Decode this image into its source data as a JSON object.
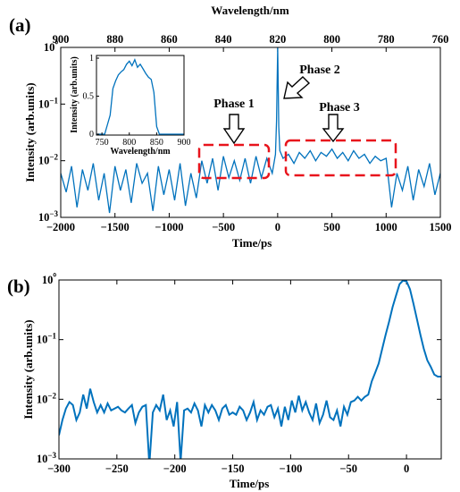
{
  "panels": {
    "a": {
      "label": "(a)",
      "top_axis_label": "Wavelength/nm",
      "bottom_axis_label": "Time/ps",
      "y_axis_label": "Intensity (arb.units)",
      "annotations": [
        "Phase 1",
        "Phase 2",
        "Phase 3"
      ]
    },
    "b": {
      "label": "(b)",
      "bottom_axis_label": "Time/ps",
      "y_axis_label": "Intensity (arb.units)"
    }
  },
  "chart_data": [
    {
      "id": "panel-a-main",
      "type": "line",
      "title": "",
      "xlabel": "Time/ps",
      "ylabel": "Intensity (arb.units)",
      "x2label": "Wavelength/nm",
      "xlim": [
        -2000,
        1500
      ],
      "x2lim": [
        900,
        760
      ],
      "ylim": [
        0.001,
        1
      ],
      "yscale": "log",
      "grid": false,
      "color": "#0072bd",
      "xticks": [
        -2000,
        -1500,
        -1000,
        -500,
        0,
        500,
        1000,
        1500
      ],
      "xticklabels": [
        "−2000",
        "−1500",
        "−1000",
        "−500",
        "0",
        "500",
        "1000",
        "1500"
      ],
      "x2ticks": [
        900,
        880,
        860,
        840,
        820,
        800,
        780,
        760
      ],
      "x2ticklabels": [
        "900",
        "880",
        "860",
        "840",
        "820",
        "800",
        "780",
        "760"
      ],
      "yticks": [
        0.001,
        0.01,
        0.1,
        1
      ],
      "yticklabels": [
        "10−3",
        "10−2",
        "10−1",
        "10⁰"
      ],
      "series": [
        {
          "x": [
            -2000,
            -1950,
            -1900,
            -1850,
            -1800,
            -1750,
            -1700,
            -1650,
            -1600,
            -1550,
            -1500,
            -1450,
            -1400,
            -1350,
            -1300,
            -1250,
            -1200,
            -1150,
            -1100,
            -1050,
            -1000,
            -950,
            -900,
            -850,
            -800,
            -750,
            -700,
            -650,
            -600,
            -550,
            -500,
            -450,
            -400,
            -350,
            -300,
            -250,
            -200,
            -150,
            -100,
            -50,
            -20,
            -10,
            0,
            10,
            20,
            50,
            100,
            150,
            200,
            250,
            300,
            350,
            400,
            450,
            500,
            550,
            600,
            650,
            700,
            750,
            800,
            850,
            900,
            950,
            1000,
            1050,
            1100,
            1150,
            1200,
            1250,
            1300,
            1350,
            1400,
            1450,
            1500
          ],
          "values": [
            0.006,
            0.0028,
            0.008,
            0.0015,
            0.007,
            0.003,
            0.009,
            0.002,
            0.006,
            0.0012,
            0.008,
            0.003,
            0.007,
            0.0018,
            0.009,
            0.004,
            0.006,
            0.0013,
            0.008,
            0.0025,
            0.007,
            0.002,
            0.009,
            0.0016,
            0.006,
            0.0022,
            0.01,
            0.004,
            0.011,
            0.003,
            0.012,
            0.005,
            0.01,
            0.0045,
            0.011,
            0.004,
            0.012,
            0.005,
            0.011,
            0.006,
            0.013,
            0.05,
            1.0,
            0.04,
            0.015,
            0.011,
            0.013,
            0.009,
            0.014,
            0.011,
            0.015,
            0.01,
            0.014,
            0.012,
            0.016,
            0.011,
            0.014,
            0.01,
            0.015,
            0.011,
            0.013,
            0.009,
            0.012,
            0.01,
            0.011,
            0.0015,
            0.006,
            0.003,
            0.008,
            0.002,
            0.007,
            0.0035,
            0.009,
            0.0025,
            0.006
          ]
        }
      ],
      "inset": {
        "type": "line",
        "xlabel": "Wavelength/nm",
        "ylabel": "Intensity (arb.units)",
        "xlim": [
          740,
          900
        ],
        "ylim": [
          0,
          1
        ],
        "xticks": [
          750,
          800,
          850,
          900
        ],
        "yticks": [
          0,
          0.5,
          1
        ],
        "yticklabels": [
          "0",
          "0.5",
          "1"
        ],
        "x": [
          740,
          755,
          765,
          770,
          775,
          780,
          785,
          790,
          795,
          800,
          805,
          810,
          815,
          820,
          825,
          830,
          835,
          840,
          845,
          850,
          855,
          900
        ],
        "values": [
          0,
          0,
          0.25,
          0.6,
          0.7,
          0.78,
          0.82,
          0.85,
          0.92,
          0.96,
          0.9,
          0.98,
          0.88,
          0.92,
          0.86,
          0.8,
          0.75,
          0.72,
          0.55,
          0.1,
          0,
          0
        ]
      }
    },
    {
      "id": "panel-b-zoom",
      "type": "line",
      "title": "",
      "xlabel": "Time/ps",
      "ylabel": "Intensity (arb.units)",
      "xlim": [
        -300,
        30
      ],
      "ylim": [
        0.001,
        1
      ],
      "yscale": "log",
      "grid": false,
      "color": "#0072bd",
      "xticks": [
        -300,
        -250,
        -200,
        -150,
        -100,
        -50,
        0
      ],
      "xticklabels": [
        "−300",
        "−250",
        "−200",
        "−150",
        "−100",
        "−50",
        "0"
      ],
      "yticks": [
        0.001,
        0.01,
        0.1,
        1
      ],
      "yticklabels": [
        "10−3",
        "10−2",
        "10−1",
        "10⁰"
      ],
      "series": [
        {
          "x": [
            -300,
            -297,
            -294,
            -291,
            -288,
            -285,
            -282,
            -279,
            -276,
            -273,
            -270,
            -267,
            -264,
            -261,
            -258,
            -255,
            -252,
            -249,
            -246,
            -243,
            -240,
            -237,
            -234,
            -231,
            -228,
            -225,
            -222,
            -219,
            -216,
            -213,
            -210,
            -207,
            -204,
            -201,
            -198,
            -195,
            -192,
            -189,
            -186,
            -183,
            -180,
            -177,
            -174,
            -171,
            -168,
            -165,
            -162,
            -159,
            -156,
            -153,
            -150,
            -147,
            -144,
            -141,
            -138,
            -135,
            -132,
            -129,
            -126,
            -123,
            -120,
            -117,
            -114,
            -111,
            -108,
            -105,
            -102,
            -99,
            -96,
            -93,
            -90,
            -87,
            -84,
            -81,
            -78,
            -75,
            -72,
            -69,
            -66,
            -63,
            -60,
            -57,
            -54,
            -51,
            -48,
            -45,
            -42,
            -39,
            -36,
            -33,
            -30,
            -27,
            -24,
            -21,
            -18,
            -15,
            -12,
            -9,
            -6,
            -3,
            0,
            3,
            6,
            9,
            12,
            15,
            18,
            21,
            24,
            27,
            30
          ],
          "values": [
            0.0025,
            0.0045,
            0.007,
            0.009,
            0.008,
            0.0045,
            0.006,
            0.012,
            0.007,
            0.015,
            0.009,
            0.006,
            0.008,
            0.006,
            0.0085,
            0.0065,
            0.007,
            0.0075,
            0.0065,
            0.006,
            0.007,
            0.008,
            0.004,
            0.006,
            0.0075,
            0.008,
            0.0008,
            0.006,
            0.008,
            0.0065,
            0.012,
            0.0045,
            0.0065,
            0.0035,
            0.009,
            0.0009,
            0.0065,
            0.007,
            0.006,
            0.0085,
            0.0065,
            0.0035,
            0.008,
            0.006,
            0.008,
            0.0065,
            0.0045,
            0.007,
            0.008,
            0.0055,
            0.006,
            0.0055,
            0.0075,
            0.0065,
            0.0045,
            0.006,
            0.009,
            0.0045,
            0.0065,
            0.0055,
            0.0075,
            0.008,
            0.005,
            0.007,
            0.0035,
            0.0075,
            0.0045,
            0.0095,
            0.006,
            0.0115,
            0.0065,
            0.009,
            0.006,
            0.0045,
            0.0085,
            0.004,
            0.0055,
            0.0095,
            0.005,
            0.0045,
            0.0065,
            0.0035,
            0.0075,
            0.0055,
            0.009,
            0.0095,
            0.011,
            0.0095,
            0.011,
            0.012,
            0.02,
            0.028,
            0.04,
            0.07,
            0.12,
            0.2,
            0.35,
            0.55,
            0.85,
            0.98,
            0.95,
            0.7,
            0.4,
            0.22,
            0.12,
            0.07,
            0.045,
            0.035,
            0.026,
            0.024,
            0.024
          ]
        }
      ]
    }
  ]
}
